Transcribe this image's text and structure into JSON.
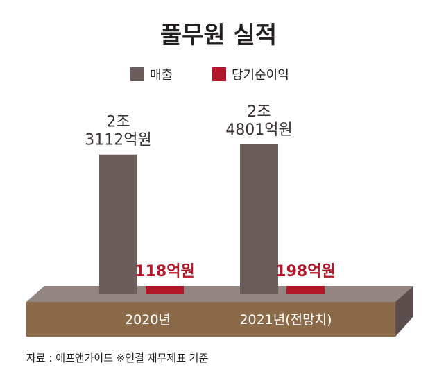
{
  "chart_data": {
    "type": "bar",
    "title": "풀무원 실적",
    "categories": [
      "2020년",
      "2021년(전망치)"
    ],
    "series": [
      {
        "name": "매출",
        "color": "#6b5d5b",
        "values": [
          23112,
          24801
        ],
        "labels": [
          [
            "2조",
            "3112억원"
          ],
          [
            "2조",
            "4801억원"
          ]
        ]
      },
      {
        "name": "당기순이익",
        "color": "#b0182a",
        "values": [
          118,
          198
        ],
        "labels": [
          [
            "118억원"
          ],
          [
            "198억원"
          ]
        ]
      }
    ],
    "unit": "억원",
    "ylim": [
      0,
      26500
    ],
    "legend_position": "top-center",
    "grid": false,
    "source": "자료 : 에프앤가이드 ※연결 재무제표 기준"
  }
}
